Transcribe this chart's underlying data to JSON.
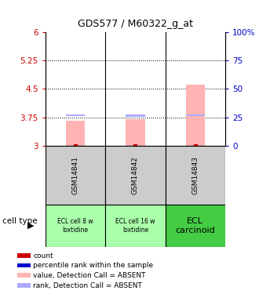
{
  "title": "GDS577 / M60322_g_at",
  "samples": [
    "GSM14841",
    "GSM14842",
    "GSM14843"
  ],
  "ylim_left": [
    3.0,
    6.0
  ],
  "ylim_right": [
    0,
    100
  ],
  "yticks_left": [
    3,
    3.75,
    4.5,
    5.25,
    6
  ],
  "ytick_labels_left": [
    "3",
    "3.75",
    "4.5",
    "5.25",
    "6"
  ],
  "yticks_right": [
    0,
    25,
    50,
    75,
    100
  ],
  "ytick_labels_right": [
    "0",
    "25",
    "50",
    "75",
    "100%"
  ],
  "dotted_lines": [
    3.75,
    4.5,
    5.25
  ],
  "bar_values": [
    3.65,
    3.7,
    4.62
  ],
  "bar_color": "#ffb3b3",
  "rank_dot_values": [
    3.775,
    3.77,
    3.78
  ],
  "rank_dot_color": "#aaaaff",
  "count_color": "#cc0000",
  "cell_labels_line1": [
    "ECL cell 8 w",
    "ECL cell 16 w",
    "ECL"
  ],
  "cell_labels_line2": [
    "loxtidine",
    "loxtidine",
    "carcinoid"
  ],
  "cell_colors": [
    "#aaffaa",
    "#aaffaa",
    "#44cc44"
  ],
  "sample_box_color": "#cccccc",
  "legend_items": [
    {
      "color": "#cc0000",
      "marker": "s",
      "label": "count"
    },
    {
      "color": "#0000cc",
      "marker": "s",
      "label": "percentile rank within the sample"
    },
    {
      "color": "#ffb3b3",
      "marker": "s",
      "label": "value, Detection Call = ABSENT"
    },
    {
      "color": "#aaaaff",
      "marker": "s",
      "label": "rank, Detection Call = ABSENT"
    }
  ],
  "cell_type_label": "cell type",
  "left_axis_color": "#cc0000",
  "right_axis_color": "#0000cc",
  "fig_width": 3.3,
  "fig_height": 3.75,
  "dpi": 100
}
